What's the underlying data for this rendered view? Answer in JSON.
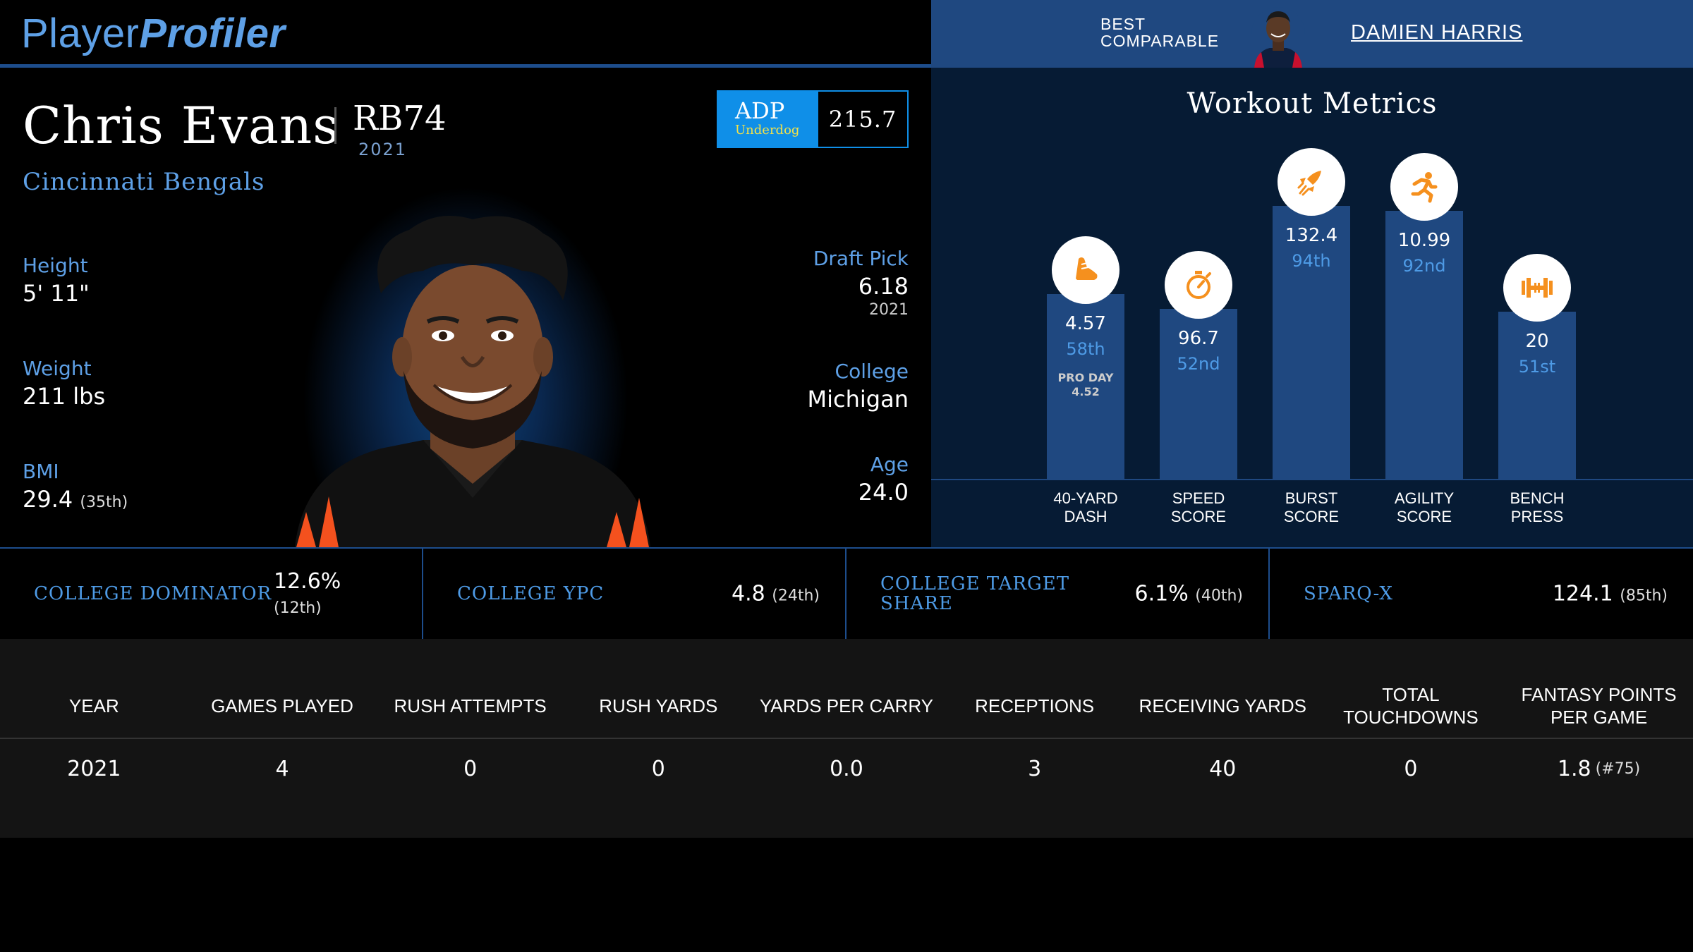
{
  "header": {
    "logo_player": "Player",
    "logo_profiler": "Profiler",
    "best_comparable_label": "BEST COMPARABLE",
    "best_comparable_name": "DAMIEN HARRIS"
  },
  "player": {
    "name": "Chris Evans",
    "position": "RB74",
    "position_year": "2021",
    "team": "Cincinnati Bengals",
    "adp": {
      "label": "ADP",
      "source": "Underdog",
      "value": "215.7"
    },
    "height": {
      "label": "Height",
      "value": "5' 11\""
    },
    "weight": {
      "label": "Weight",
      "value": "211 lbs"
    },
    "bmi": {
      "label": "BMI",
      "value": "29.4",
      "rank": "(35th)"
    },
    "draft_pick": {
      "label": "Draft Pick",
      "value": "6.18",
      "year": "2021"
    },
    "college": {
      "label": "College",
      "value": "Michigan"
    },
    "age": {
      "label": "Age",
      "value": "24.0"
    }
  },
  "workout": {
    "title": "Workout Metrics",
    "metrics": [
      {
        "value": "4.57",
        "percentile": "58th",
        "pct_num": 58,
        "extra_label": "PRO DAY",
        "extra_value": "4.52",
        "label_line1": "40-YARD",
        "label_line2": "DASH",
        "icon": "shoe-icon"
      },
      {
        "value": "96.7",
        "percentile": "52nd",
        "pct_num": 52,
        "label_line1": "SPEED",
        "label_line2": "SCORE",
        "icon": "stopwatch-icon"
      },
      {
        "value": "132.4",
        "percentile": "94th",
        "pct_num": 94,
        "label_line1": "BURST",
        "label_line2": "SCORE",
        "icon": "rocket-icon"
      },
      {
        "value": "10.99",
        "percentile": "92nd",
        "pct_num": 92,
        "label_line1": "AGILITY",
        "label_line2": "SCORE",
        "icon": "runner-icon"
      },
      {
        "value": "20",
        "percentile": "51st",
        "pct_num": 51,
        "label_line1": "BENCH",
        "label_line2": "PRESS",
        "icon": "dumbbell-icon"
      }
    ]
  },
  "college_metrics": [
    {
      "label": "COLLEGE DOMINATOR",
      "value": "12.6%",
      "rank": "(12th)"
    },
    {
      "label": "COLLEGE YPC",
      "value": "4.8",
      "rank": "(24th)"
    },
    {
      "label": "COLLEGE TARGET SHARE",
      "value": "6.1%",
      "rank": "(40th)"
    },
    {
      "label": "SPARQ-X",
      "value": "124.1",
      "rank": "(85th)"
    }
  ],
  "stats_table": {
    "columns": [
      "YEAR",
      "GAMES PLAYED",
      "RUSH ATTEMPTS",
      "RUSH YARDS",
      "YARDS PER CARRY",
      "RECEPTIONS",
      "RECEIVING YARDS",
      "TOTAL TOUCHDOWNS",
      "FANTASY POINTS PER GAME"
    ],
    "row": [
      "2021",
      "4",
      "0",
      "0",
      "0.0",
      "3",
      "40",
      "0",
      "1.8"
    ],
    "row_fpts_rank": "(#75)"
  },
  "colors": {
    "accent_blue": "#4e9be6",
    "bar_blue": "#1f4880",
    "icon_orange": "#f5901e",
    "adp_blue": "#0f8fe8"
  }
}
